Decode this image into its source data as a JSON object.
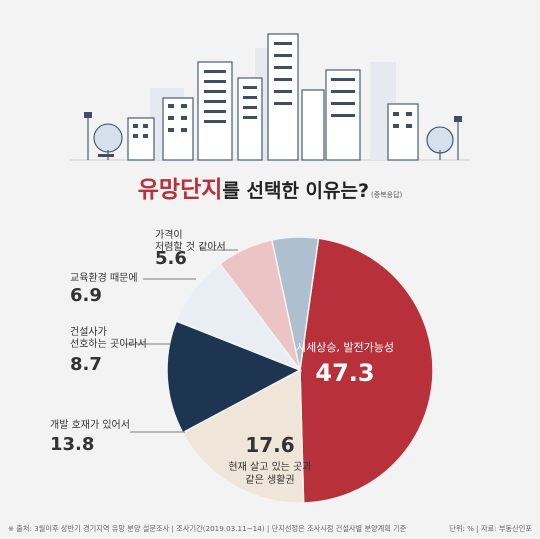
{
  "title": {
    "highlight": "유망단지",
    "rest": "를 선택한 이유는?",
    "note": "(중복응답)"
  },
  "colors": {
    "accent": "#b8303a",
    "navy": "#1e3552",
    "cream": "#efe5d8",
    "pale_blue": "#e8eef4",
    "pink": "#ecc4c6",
    "grey_blue": "#aebfcf"
  },
  "chart_data": {
    "type": "pie",
    "unit": "%",
    "slices": [
      {
        "label": "시세상승, 발전가능성",
        "value": 47.3,
        "color": "#b8303a"
      },
      {
        "label": "현재 살고 있는 곳과 같은 생활권",
        "value": 17.6,
        "color": "#efe5d8"
      },
      {
        "label": "개발 호재가 있어서",
        "value": 13.8,
        "color": "#1e3552"
      },
      {
        "label": "건설사가 선호하는 곳이라서",
        "value": 8.7,
        "color": "#e8eef4"
      },
      {
        "label": "교육환경 때문에",
        "value": 6.9,
        "color": "#ecc4c6"
      },
      {
        "label": "가격이 저렴할 것 같아서",
        "value": 5.6,
        "color": "#aebfcf"
      }
    ],
    "labels": {
      "s0": [
        "시세상승, 발전가능성"
      ],
      "s1": [
        "현재 살고 있는 곳과",
        "같은 생활권"
      ],
      "s2": [
        "개발 호재가 있어서"
      ],
      "s3": [
        "건설사가",
        "선호하는 곳이라서"
      ],
      "s4": [
        "교육환경 때문에"
      ],
      "s5": [
        "가격이",
        "저렴할 것 같아서"
      ]
    }
  },
  "footer": {
    "left": "※ 출처: 3월이후 상반기 경기지역 유망 분양 설문조사 | 조사기간(2019.03.11~14) | 단지선정은 조사시점 건설사별 분양계획 기준",
    "right": "단위: % | 자료: 부동산인포"
  }
}
